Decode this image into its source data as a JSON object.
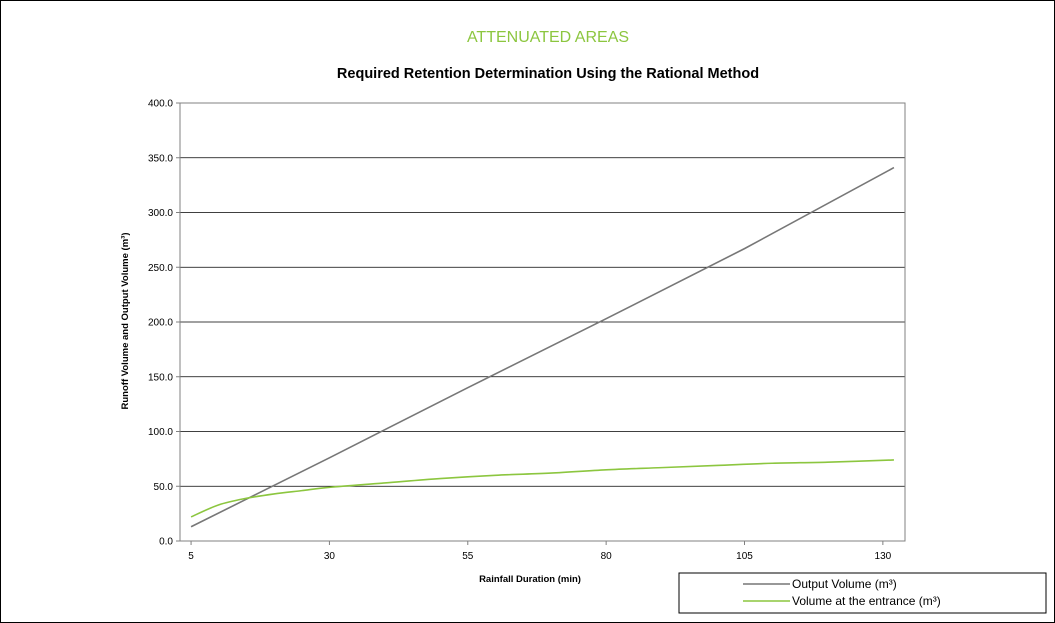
{
  "chart_data": {
    "type": "line",
    "supertitle": "ATTENUATED AREAS",
    "title": "Required Retention Determination Using the Rational Method",
    "xlabel": "Rainfall Duration (min)",
    "ylabel": "Runoff Volume and Output Volume (m³)",
    "xlim": [
      3,
      134
    ],
    "ylim": [
      0,
      400
    ],
    "xticks": [
      5,
      30,
      55,
      80,
      105,
      130
    ],
    "yticks": [
      0,
      50,
      100,
      150,
      200,
      250,
      300,
      350,
      400
    ],
    "ytick_labels": [
      "0.0",
      "50.0",
      "100.0",
      "150.0",
      "200.0",
      "250.0",
      "300.0",
      "350.0",
      "400.0"
    ],
    "grid": "horizontal",
    "legend_position": "bottom-right",
    "colors": {
      "output": "#777777",
      "entrance": "#8cc63f",
      "supertitle": "#8cc63f"
    },
    "series": [
      {
        "name": "Output Volume (m³)",
        "color": "#777777",
        "x": [
          5,
          30,
          55,
          80,
          105,
          132
        ],
        "y": [
          13,
          76,
          140,
          203,
          267,
          341
        ]
      },
      {
        "name": "Volume at the entrance  (m³)",
        "color": "#8cc63f",
        "x": [
          5,
          10,
          15,
          20,
          25,
          30,
          40,
          50,
          60,
          70,
          80,
          90,
          100,
          110,
          120,
          132
        ],
        "y": [
          22,
          33,
          39,
          43,
          46,
          49,
          53,
          57,
          60,
          62,
          65,
          67,
          69,
          71,
          72,
          74
        ]
      }
    ]
  }
}
